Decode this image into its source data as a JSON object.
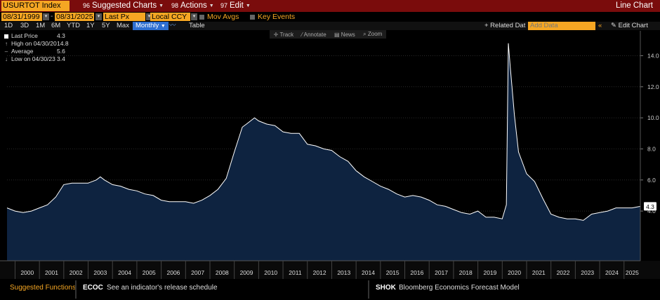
{
  "titlebar": {
    "ticker": "USURTOT Index",
    "suggested_charts": "Suggested Charts",
    "actions": "Actions",
    "edit": "Edit",
    "chart_kind": "Line Chart"
  },
  "fields": {
    "start_date": "08/31/1999",
    "dash": "-",
    "end_date": "08/31/2025",
    "field": "Last Px",
    "currency": "Local CCY",
    "mov_avgs": "Mov Avgs",
    "key_events": "Key Events"
  },
  "periods": [
    "1D",
    "3D",
    "1M",
    "6M",
    "YTD",
    "1Y",
    "5Y",
    "Max"
  ],
  "frequency": "Monthly",
  "table_label": "Table",
  "related_label": "+ Related Dat",
  "add_data_placeholder": "Add Data",
  "edit_chart": "Edit Chart",
  "tools": {
    "track": "Track",
    "annotate": "Annotate",
    "news": "News",
    "zoom": "Zoom"
  },
  "legend": [
    {
      "label": "Last Price",
      "value": "4.3",
      "icon": "square-marker"
    },
    {
      "label": "High on 04/30/20",
      "value": "14.8",
      "icon": "up-arrow"
    },
    {
      "label": "Average",
      "value": "5.6",
      "icon": "dash"
    },
    {
      "label": "Low on 04/30/23",
      "value": "3.4",
      "icon": "down-arrow"
    }
  ],
  "last_value_tag": "4.3",
  "footer": {
    "suggested_functions": "Suggested Functions",
    "ecoc_code": "ECOC",
    "ecoc_desc": "See an indicator's release schedule",
    "shok_code": "SHOK",
    "shok_desc": "Bloomberg Economics Forecast Model"
  },
  "colors": {
    "title_bg": "#7a0c0c",
    "accent": "#f5a623",
    "area_fill": "#0e2340",
    "line": "#ffffff"
  },
  "chart_data": {
    "type": "area",
    "title": "",
    "xlabel": "",
    "ylabel": "",
    "x_ticks": [
      "2000",
      "2001",
      "2002",
      "2003",
      "2004",
      "2005",
      "2006",
      "2007",
      "2008",
      "2009",
      "2010",
      "2011",
      "2012",
      "2013",
      "2014",
      "2015",
      "2016",
      "2017",
      "2018",
      "2019",
      "2020",
      "2021",
      "2022",
      "2023",
      "2024",
      "2025"
    ],
    "y_ticks": [
      "4.0",
      "6.0",
      "8.0",
      "10.0",
      "12.0",
      "14.0"
    ],
    "ylim": [
      0.8,
      15.6
    ],
    "xlim": [
      1999.67,
      2025.67
    ],
    "series": [
      {
        "x": [
          1999.67,
          2000.0,
          2000.33,
          2000.67,
          2001.0,
          2001.33,
          2001.67,
          2002.0,
          2002.33,
          2002.67,
          2003.0,
          2003.33,
          2003.5,
          2003.67,
          2004.0,
          2004.33,
          2004.67,
          2005.0,
          2005.33,
          2005.67,
          2006.0,
          2006.33,
          2006.67,
          2007.0,
          2007.33,
          2007.67,
          2008.0,
          2008.33,
          2008.67,
          2009.0,
          2009.33,
          2009.5,
          2009.83,
          2010.0,
          2010.33,
          2010.67,
          2011.0,
          2011.33,
          2011.67,
          2012.0,
          2012.33,
          2012.67,
          2013.0,
          2013.33,
          2013.67,
          2014.0,
          2014.33,
          2014.67,
          2015.0,
          2015.33,
          2015.67,
          2016.0,
          2016.33,
          2016.67,
          2017.0,
          2017.33,
          2017.67,
          2018.0,
          2018.33,
          2018.67,
          2019.0,
          2019.33,
          2019.67,
          2020.0,
          2020.17,
          2020.25,
          2020.33,
          2020.5,
          2020.67,
          2021.0,
          2021.33,
          2021.67,
          2022.0,
          2022.33,
          2022.67,
          2023.0,
          2023.33,
          2023.67,
          2024.0,
          2024.33,
          2024.67,
          2025.0,
          2025.33,
          2025.67
        ],
        "values": [
          4.2,
          4.0,
          3.9,
          4.0,
          4.2,
          4.4,
          4.9,
          5.7,
          5.8,
          5.8,
          5.8,
          6.0,
          6.2,
          6.0,
          5.7,
          5.6,
          5.4,
          5.3,
          5.1,
          5.0,
          4.7,
          4.6,
          4.6,
          4.6,
          4.5,
          4.7,
          5.0,
          5.4,
          6.1,
          7.8,
          9.4,
          9.6,
          10.0,
          9.8,
          9.6,
          9.5,
          9.1,
          9.0,
          9.0,
          8.3,
          8.2,
          8.0,
          7.9,
          7.5,
          7.2,
          6.6,
          6.2,
          5.9,
          5.6,
          5.4,
          5.1,
          4.9,
          5.0,
          4.9,
          4.7,
          4.4,
          4.3,
          4.1,
          3.9,
          3.8,
          4.0,
          3.6,
          3.6,
          3.5,
          4.4,
          14.8,
          13.3,
          10.2,
          7.8,
          6.4,
          5.9,
          4.8,
          3.8,
          3.6,
          3.5,
          3.5,
          3.4,
          3.8,
          3.9,
          4.0,
          4.2,
          4.2,
          4.2,
          4.3
        ]
      }
    ]
  }
}
